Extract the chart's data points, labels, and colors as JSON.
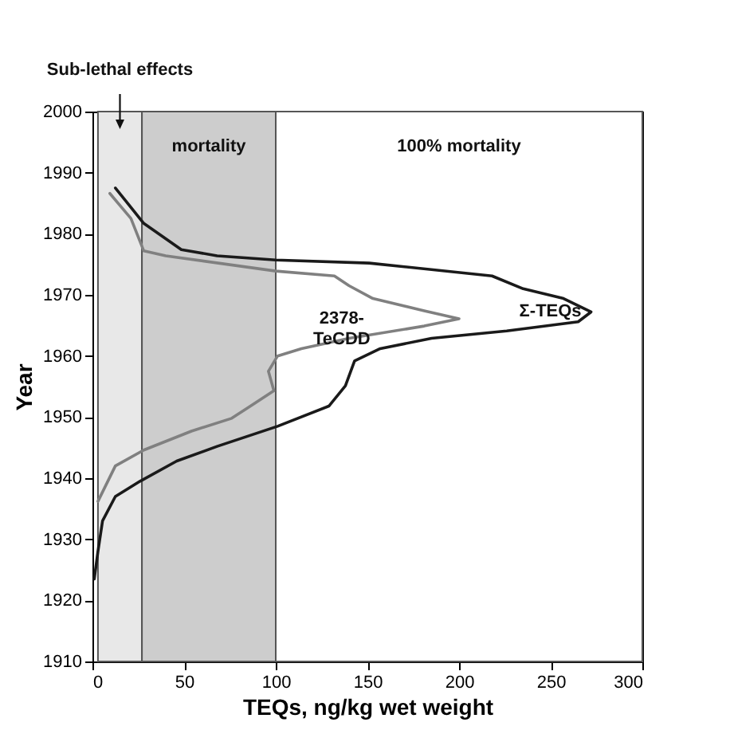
{
  "chart_data": {
    "type": "line",
    "xlabel": "TEQs, ng/kg wet weight",
    "ylabel": "Year",
    "xlim": [
      0,
      300
    ],
    "xticks": [
      0,
      50,
      100,
      150,
      200,
      250,
      300
    ],
    "ylim": [
      1910,
      2000
    ],
    "yticks": [
      1910,
      1920,
      1930,
      1940,
      1950,
      1960,
      1970,
      1980,
      1990,
      2000
    ],
    "bands": [
      {
        "axis": "x",
        "from": 3,
        "to": 27,
        "label": "Sub-lethal effects",
        "color": "#e8e8e8"
      },
      {
        "axis": "x",
        "from": 27,
        "to": 100,
        "label": "mortality",
        "color": "#cdcdcd"
      },
      {
        "axis": "x",
        "from": 100,
        "to": 300,
        "label": "100% mortality",
        "color": "#ffffff"
      }
    ],
    "series": [
      {
        "name": "Σ-TEQs",
        "color": "#1a1a1a",
        "x": [
          12.5,
          28,
          48.5,
          68,
          100,
          151,
          218,
          235,
          257,
          272,
          265,
          226,
          185,
          157,
          143,
          138,
          129,
          101,
          68,
          46,
          26,
          12.5,
          5.5,
          3,
          1
        ],
        "values": [
          1987.5,
          1981.7,
          1977.4,
          1976.4,
          1975.7,
          1975.2,
          1973.1,
          1971,
          1969.4,
          1967.2,
          1965.6,
          1964.1,
          1962.9,
          1961.2,
          1959.2,
          1955.1,
          1951.8,
          1948.5,
          1945.2,
          1942.8,
          1939.5,
          1937,
          1933,
          1928,
          1923.5
        ]
      },
      {
        "name": "2378-TeCDD",
        "color": "#808080",
        "x": [
          9.5,
          21,
          28,
          40,
          100,
          132,
          140,
          153,
          181,
          200,
          181,
          140,
          114,
          101,
          96,
          99,
          76,
          54,
          28,
          12.5,
          3
        ],
        "values": [
          1986.6,
          1982.5,
          1977.2,
          1976.4,
          1973.9,
          1973.1,
          1971.5,
          1969.4,
          1967.4,
          1966.1,
          1964.9,
          1962.9,
          1961.2,
          1960,
          1957.5,
          1954.3,
          1949.8,
          1947.7,
          1944.6,
          1942,
          1936.2
        ]
      }
    ]
  }
}
